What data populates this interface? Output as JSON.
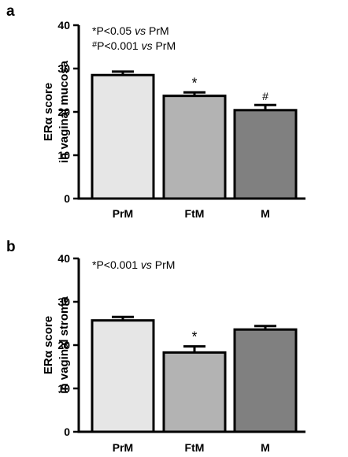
{
  "chart_data": [
    {
      "type": "bar",
      "panel": "a",
      "categories": [
        "PrM",
        "FtM",
        "M"
      ],
      "values": [
        28.5,
        23.7,
        20.4
      ],
      "errors": [
        0.8,
        0.8,
        1.2
      ],
      "bar_colors": [
        "#e6e6e6",
        "#b3b3b3",
        "#808080"
      ],
      "significance": [
        "",
        "*",
        "#"
      ],
      "ylabel_line1": "ERα score",
      "ylabel_line2": "in vaginal mucosa",
      "ylim": [
        0,
        40
      ],
      "yticks": [
        0,
        10,
        20,
        30,
        40
      ],
      "annotations": [
        {
          "mark": "*",
          "text": "P<0.05 ",
          "vs": "vs",
          "tail": " PrM"
        },
        {
          "mark": "#",
          "text": "P<0.001 ",
          "vs": "vs",
          "tail": " PrM"
        }
      ]
    },
    {
      "type": "bar",
      "panel": "b",
      "categories": [
        "PrM",
        "FtM",
        "M"
      ],
      "values": [
        25.7,
        18.3,
        23.6
      ],
      "errors": [
        0.8,
        1.4,
        0.8
      ],
      "bar_colors": [
        "#e6e6e6",
        "#b3b3b3",
        "#808080"
      ],
      "significance": [
        "",
        "*",
        ""
      ],
      "ylabel_line1": "ERα score",
      "ylabel_line2": "in vaginal stroma",
      "ylim": [
        0,
        40
      ],
      "yticks": [
        0,
        10,
        20,
        30,
        40
      ],
      "annotations": [
        {
          "mark": "*",
          "text": "P<0.001 ",
          "vs": "vs",
          "tail": " PrM"
        }
      ]
    }
  ]
}
